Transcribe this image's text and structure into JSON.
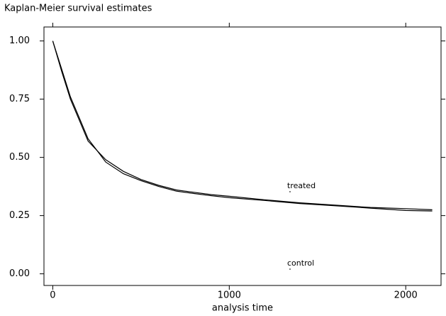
{
  "chart_data": {
    "type": "line",
    "title": "Kaplan-Meier survival estimates",
    "x_label": "analysis time",
    "x": [
      0,
      50,
      100,
      150,
      200,
      250,
      300,
      400,
      500,
      600,
      700,
      800,
      900,
      1000,
      1200,
      1400,
      1600,
      1800,
      2000,
      2150
    ],
    "series": [
      {
        "name": "treated",
        "color": "#000000",
        "values": [
          1.0,
          0.87,
          0.75,
          0.66,
          0.57,
          0.53,
          0.49,
          0.44,
          0.405,
          0.38,
          0.36,
          0.35,
          0.34,
          0.333,
          0.318,
          0.305,
          0.295,
          0.285,
          0.28,
          0.275
        ]
      },
      {
        "name": "control",
        "color": "#000000",
        "values": [
          1.0,
          0.88,
          0.76,
          0.67,
          0.58,
          0.53,
          0.48,
          0.43,
          0.4,
          0.375,
          0.355,
          0.345,
          0.335,
          0.327,
          0.315,
          0.302,
          0.292,
          0.282,
          0.272,
          0.27
        ]
      }
    ],
    "xlim": [
      -50,
      2200
    ],
    "ylim": [
      -0.05,
      1.06
    ],
    "xticks": [
      0,
      1000,
      2000
    ],
    "yticks": [
      {
        "value": 0,
        "label": "0.00"
      },
      {
        "value": 0.25,
        "label": "0.25"
      },
      {
        "value": 0.5,
        "label": "0.50"
      },
      {
        "value": 0.75,
        "label": "0.75"
      },
      {
        "value": 1,
        "label": "1.00"
      }
    ],
    "grid": false
  }
}
